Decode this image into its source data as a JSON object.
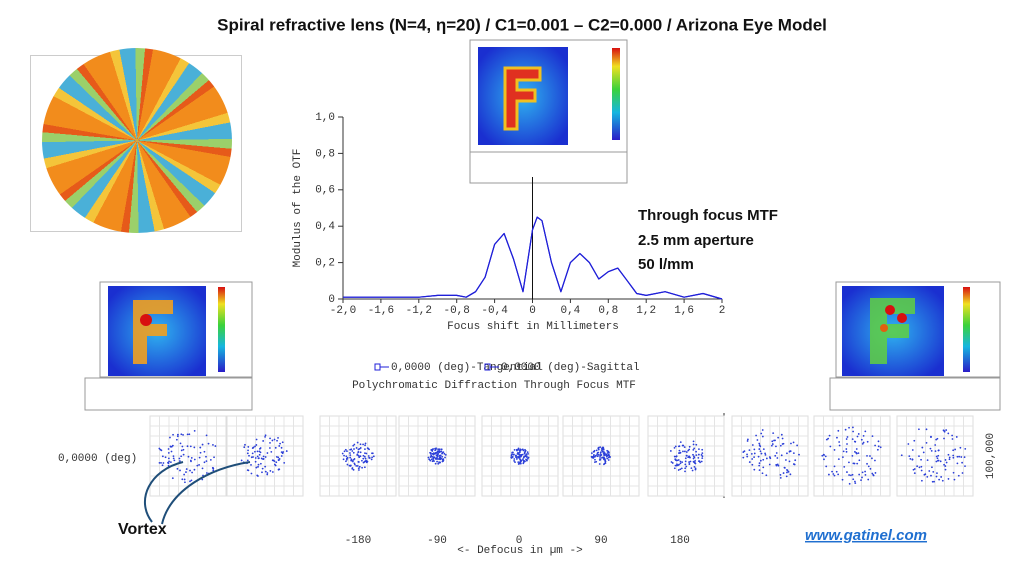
{
  "header": {
    "title": "Spiral refractive lens (N=4, η=20) / C1=0.001 – C2=0.000 / Arizona Eye Model"
  },
  "chart_data": {
    "type": "line",
    "title": "Polychromatic Diffraction Through Focus MTF",
    "x_label": "Focus shift in Millimeters",
    "y_label": "Modulus of the OTF",
    "xlim": [
      -2,
      2
    ],
    "ylim": [
      0,
      1
    ],
    "xticks": [
      {
        "value": -2,
        "label": "-2,0"
      },
      {
        "value": -1.6,
        "label": "-1,6"
      },
      {
        "value": -1.2,
        "label": "-1,2"
      },
      {
        "value": -0.8,
        "label": "-0,8"
      },
      {
        "value": -0.4,
        "label": "-0,4"
      },
      0,
      {
        "value": 0.4,
        "label": "0,4"
      },
      {
        "value": 0.8,
        "label": "0,8"
      },
      {
        "value": 1.2,
        "label": "1,2"
      },
      {
        "value": 1.6,
        "label": "1,6"
      },
      2
    ],
    "yticks": [
      0,
      {
        "value": 0.2,
        "label": "0,2"
      },
      {
        "value": 0.4,
        "label": "0,4"
      },
      {
        "value": 0.6,
        "label": "0,6"
      },
      {
        "value": 0.8,
        "label": "0,8"
      },
      {
        "value": 1,
        "label": "1,0"
      }
    ],
    "x": [
      -2,
      -1.6,
      -1.2,
      -1,
      -0.8,
      -0.7,
      -0.6,
      -0.5,
      -0.4,
      -0.3,
      -0.2,
      -0.1,
      0,
      0.05,
      0.1,
      0.2,
      0.3,
      0.4,
      0.5,
      0.6,
      0.7,
      0.8,
      0.9,
      1,
      1.1,
      1.2,
      1.4,
      1.6,
      1.8,
      2
    ],
    "series": [
      {
        "name": "0,0000 (deg)-Tangential",
        "color": "#1f1fd8",
        "values": [
          0.01,
          0.01,
          0.01,
          0.02,
          0.02,
          0.01,
          0.04,
          0.12,
          0.3,
          0.36,
          0.22,
          0.04,
          0.38,
          0.45,
          0.43,
          0.2,
          0.04,
          0.2,
          0.25,
          0.2,
          0.11,
          0.15,
          0.17,
          0.1,
          0.03,
          0.02,
          0.04,
          0.01,
          0.03,
          0
        ]
      },
      {
        "name": "0,0000 (deg)-Sagittal",
        "color": "#1f1fd8",
        "values": [
          0.01,
          0.01,
          0.01,
          0.02,
          0.02,
          0.01,
          0.04,
          0.12,
          0.3,
          0.36,
          0.22,
          0.04,
          0.38,
          0.45,
          0.43,
          0.2,
          0.04,
          0.2,
          0.25,
          0.2,
          0.11,
          0.15,
          0.17,
          0.1,
          0.03,
          0.02,
          0.04,
          0.01,
          0.03,
          0
        ]
      }
    ]
  },
  "annotation": {
    "lines": [
      "Through focus MTF",
      "2.5 mm aperture",
      "50 l/mm"
    ]
  },
  "spot_row": {
    "field_label": "0,0000 (deg)",
    "defocus_ticks": [
      -180,
      -90,
      0,
      90,
      180
    ],
    "axis_label": "<- Defocus in µm ->",
    "scale_label": "100,000"
  },
  "callout": "Vortex",
  "footer": {
    "link": "www.gatinel.com"
  }
}
